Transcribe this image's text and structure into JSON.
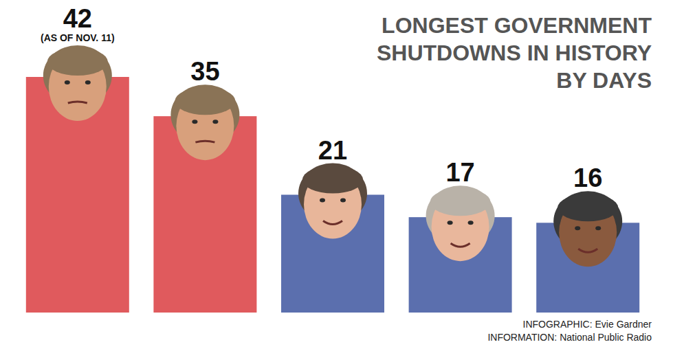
{
  "chart_data": {
    "type": "bar",
    "title": "LONGEST GOVERNMENT SHUTDOWNS IN HISTORY BY DAYS",
    "categories": [
      null,
      null,
      null,
      null,
      null
    ],
    "values": [
      42,
      35,
      21,
      17,
      16
    ],
    "colors": [
      "#e05a5d",
      "#e05a5d",
      "#5b6fae",
      "#5b6fae",
      "#5b6fae"
    ],
    "ylim": [
      0,
      42
    ],
    "data_labels": true,
    "tick_labels": false,
    "grid": false,
    "annotations": [
      "(AS OF NOV. 11)",
      "INFOGRAPHIC: Evie Gardner",
      "INFORMATION: National Public Radio"
    ]
  }
}
